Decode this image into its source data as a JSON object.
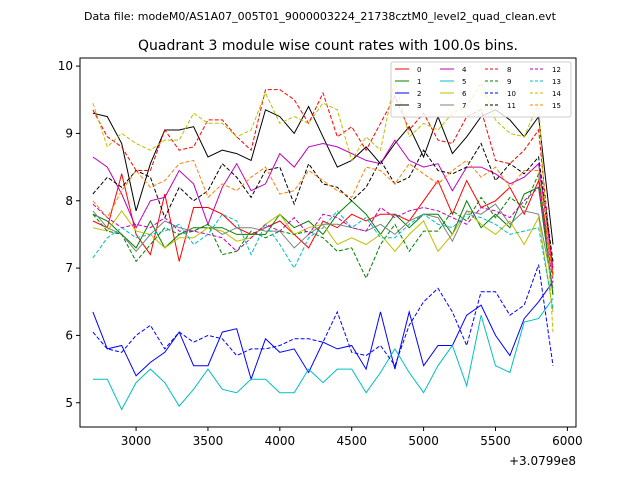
{
  "chart_data": {
    "type": "line",
    "suptitle": "Data file: modeM0/AS1A07_005T01_9000003224_21738cztM0_level2_quad_clean.evt",
    "title": "Quadrant 3 module wise count rates with 100.0s bins.",
    "xlabel": "",
    "ylabel": "",
    "x_offset_label": "+3.0799e8",
    "xlim": [
      2610,
      6060
    ],
    "ylim": [
      4.64,
      10.12
    ],
    "xticks": [
      3000,
      3500,
      4000,
      4500,
      5000,
      5500,
      6000
    ],
    "xtick_labels": [
      "3000",
      "3500",
      "4000",
      "4500",
      "5000",
      "5500",
      "6000"
    ],
    "yticks": [
      5,
      6,
      7,
      8,
      9,
      10
    ],
    "ytick_labels": [
      "5",
      "6",
      "7",
      "8",
      "9",
      "10"
    ],
    "legend_position": "top-right",
    "x": [
      2700,
      2800,
      2900,
      3000,
      3100,
      3200,
      3300,
      3400,
      3500,
      3600,
      3700,
      3800,
      3900,
      4000,
      4100,
      4200,
      4300,
      4400,
      4500,
      4600,
      4700,
      4800,
      4900,
      5000,
      5100,
      5200,
      5300,
      5400,
      5500,
      5600,
      5700,
      5800,
      5900
    ],
    "series": [
      {
        "name": "0",
        "color": "#ff0000",
        "dash": "solid",
        "values": [
          7.7,
          7.6,
          8.4,
          7.5,
          7.2,
          8.1,
          7.1,
          7.9,
          7.9,
          7.8,
          7.6,
          7.5,
          7.6,
          7.7,
          7.5,
          7.3,
          7.7,
          7.6,
          7.8,
          7.7,
          7.8,
          7.8,
          7.7,
          8.0,
          8.3,
          7.8,
          8.3,
          7.9,
          8.0,
          8.2,
          7.8,
          8.3,
          6.9
        ]
      },
      {
        "name": "1",
        "color": "#008000",
        "dash": "solid",
        "values": [
          7.8,
          7.7,
          7.5,
          7.3,
          7.7,
          7.3,
          7.5,
          7.6,
          7.6,
          7.6,
          7.5,
          7.5,
          7.5,
          7.8,
          7.6,
          7.7,
          7.5,
          7.8,
          8.0,
          7.8,
          7.5,
          7.8,
          7.6,
          7.8,
          7.8,
          7.5,
          8.0,
          7.6,
          7.8,
          7.6,
          8.1,
          8.2,
          6.6
        ]
      },
      {
        "name": "2",
        "color": "#0000ff",
        "dash": "solid",
        "values": [
          6.35,
          5.8,
          5.85,
          5.4,
          5.6,
          5.75,
          6.05,
          5.55,
          5.55,
          6.05,
          6.1,
          5.35,
          5.95,
          5.75,
          5.8,
          5.45,
          5.9,
          5.8,
          5.85,
          5.5,
          6.35,
          5.5,
          6.35,
          5.55,
          5.85,
          5.85,
          6.3,
          6.45,
          6.0,
          5.7,
          6.25,
          6.5,
          6.8
        ]
      },
      {
        "name": "3",
        "color": "#000000",
        "dash": "solid",
        "values": [
          9.3,
          9.25,
          8.85,
          7.85,
          8.55,
          9.05,
          9.05,
          9.1,
          8.65,
          8.75,
          8.7,
          8.6,
          9.35,
          9.25,
          9.0,
          9.4,
          8.95,
          8.5,
          8.6,
          8.8,
          8.55,
          8.85,
          9.1,
          8.65,
          9.25,
          8.7,
          8.95,
          9.25,
          9.35,
          9.2,
          8.95,
          9.25,
          7.35
        ]
      },
      {
        "name": "4",
        "color": "#bf00bf",
        "dash": "solid",
        "values": [
          8.65,
          8.5,
          8.1,
          7.6,
          8.0,
          8.05,
          8.45,
          8.25,
          7.65,
          8.2,
          8.55,
          8.15,
          8.25,
          8.7,
          8.5,
          8.8,
          8.85,
          8.8,
          8.7,
          8.6,
          8.55,
          8.9,
          8.6,
          8.5,
          8.55,
          8.15,
          8.5,
          8.5,
          8.4,
          8.25,
          8.35,
          8.55,
          7.0
        ]
      },
      {
        "name": "5",
        "color": "#00bfbf",
        "dash": "solid",
        "values": [
          5.35,
          5.35,
          4.9,
          5.3,
          5.5,
          5.3,
          4.95,
          5.2,
          5.5,
          5.2,
          5.15,
          5.35,
          5.35,
          5.15,
          5.15,
          5.5,
          5.3,
          5.5,
          5.5,
          5.15,
          5.45,
          5.8,
          5.45,
          5.15,
          5.55,
          5.85,
          5.25,
          6.3,
          5.55,
          5.45,
          6.2,
          6.25,
          6.55
        ]
      },
      {
        "name": "6",
        "color": "#bfbf00",
        "dash": "solid",
        "values": [
          7.6,
          7.55,
          7.85,
          7.55,
          7.5,
          7.3,
          7.45,
          7.45,
          7.6,
          7.55,
          7.4,
          7.45,
          7.65,
          7.8,
          7.5,
          7.6,
          7.65,
          7.35,
          7.45,
          7.35,
          7.5,
          7.25,
          7.5,
          7.7,
          7.25,
          7.5,
          7.85,
          7.65,
          7.5,
          7.7,
          7.35,
          7.75,
          6.35
        ]
      },
      {
        "name": "7",
        "color": "#808080",
        "dash": "solid",
        "values": [
          7.85,
          7.6,
          7.5,
          7.25,
          7.5,
          7.7,
          7.6,
          7.55,
          7.65,
          7.5,
          7.6,
          7.6,
          7.55,
          7.55,
          7.3,
          7.5,
          7.65,
          7.65,
          7.6,
          7.55,
          7.65,
          7.5,
          7.7,
          7.8,
          7.75,
          7.4,
          7.85,
          7.8,
          7.95,
          7.65,
          7.85,
          7.8,
          6.7
        ]
      },
      {
        "name": "8",
        "color": "#ff0000",
        "dash": "dashed",
        "values": [
          9.35,
          8.95,
          8.8,
          8.45,
          8.45,
          9.05,
          8.75,
          8.8,
          9.2,
          9.2,
          8.95,
          8.75,
          9.65,
          9.65,
          9.5,
          9.15,
          9.6,
          8.95,
          9.1,
          8.75,
          9.15,
          9.55,
          9.05,
          9.3,
          8.9,
          8.85,
          9.25,
          9.35,
          8.6,
          8.55,
          8.75,
          9.05,
          6.9
        ]
      },
      {
        "name": "9",
        "color": "#008000",
        "dash": "dashed",
        "values": [
          7.8,
          7.55,
          7.5,
          7.1,
          7.35,
          7.6,
          7.5,
          7.55,
          7.65,
          7.2,
          7.25,
          7.55,
          7.45,
          7.55,
          7.5,
          7.55,
          7.45,
          7.25,
          7.3,
          6.85,
          7.35,
          7.65,
          7.25,
          7.55,
          7.55,
          7.85,
          7.7,
          8.05,
          7.75,
          8.05,
          7.9,
          8.4,
          6.6
        ]
      },
      {
        "name": "10",
        "color": "#0000ff",
        "dash": "dashed",
        "values": [
          6.05,
          5.8,
          5.75,
          6.0,
          6.15,
          5.8,
          6.05,
          5.9,
          6.0,
          5.95,
          5.7,
          5.8,
          5.8,
          5.85,
          5.95,
          5.95,
          5.9,
          6.35,
          5.75,
          5.7,
          5.85,
          5.55,
          6.15,
          6.5,
          6.7,
          6.35,
          5.85,
          6.65,
          6.65,
          6.3,
          6.45,
          7.05,
          5.55
        ]
      },
      {
        "name": "11",
        "color": "#000000",
        "dash": "dashed",
        "values": [
          8.1,
          8.35,
          8.2,
          8.45,
          8.35,
          7.75,
          8.2,
          8.0,
          8.15,
          8.55,
          8.35,
          8.05,
          8.45,
          8.5,
          7.95,
          8.55,
          8.25,
          8.2,
          8.0,
          8.2,
          8.6,
          8.25,
          8.35,
          8.75,
          8.45,
          8.4,
          8.5,
          8.85,
          8.3,
          8.55,
          8.4,
          8.65,
          7.1
        ]
      },
      {
        "name": "12",
        "color": "#bf00bf",
        "dash": "dashed",
        "values": [
          7.95,
          7.75,
          7.6,
          7.65,
          7.6,
          7.75,
          7.55,
          7.55,
          7.5,
          7.45,
          7.25,
          7.45,
          7.65,
          7.55,
          7.75,
          7.5,
          7.8,
          7.75,
          7.6,
          7.55,
          7.9,
          7.75,
          7.85,
          7.9,
          7.85,
          7.75,
          7.65,
          7.9,
          7.85,
          7.75,
          8.0,
          8.2,
          6.8
        ]
      },
      {
        "name": "13",
        "color": "#00bfbf",
        "dash": "dashed",
        "values": [
          7.15,
          7.45,
          7.6,
          7.45,
          7.5,
          7.55,
          7.65,
          7.35,
          7.5,
          7.8,
          7.7,
          7.2,
          7.65,
          7.35,
          7.0,
          7.45,
          7.6,
          7.85,
          7.6,
          7.75,
          7.45,
          7.45,
          7.65,
          7.8,
          7.65,
          7.6,
          7.8,
          7.75,
          7.65,
          7.5,
          7.55,
          7.6,
          6.4
        ]
      },
      {
        "name": "14",
        "color": "#bfbf00",
        "dash": "dashed",
        "values": [
          9.45,
          8.8,
          9.0,
          8.85,
          8.75,
          8.9,
          8.9,
          9.3,
          9.15,
          9.15,
          8.95,
          9.05,
          9.6,
          9.15,
          9.25,
          9.15,
          9.45,
          9.35,
          8.6,
          8.95,
          8.75,
          9.8,
          8.95,
          9.15,
          9.05,
          9.3,
          9.4,
          9.75,
          9.2,
          9.0,
          8.95,
          9.45,
          6.05
        ]
      },
      {
        "name": "15",
        "color": "#ff7f0e",
        "dash": "dashed",
        "values": [
          8.0,
          7.75,
          8.15,
          8.45,
          8.2,
          8.3,
          8.55,
          8.6,
          8.05,
          8.25,
          8.15,
          8.35,
          8.5,
          8.1,
          8.15,
          8.45,
          8.3,
          8.15,
          8.05,
          8.5,
          8.45,
          8.25,
          8.55,
          8.4,
          8.25,
          8.45,
          8.6,
          8.35,
          8.5,
          8.2,
          8.45,
          8.45,
          6.85
        ]
      }
    ]
  }
}
